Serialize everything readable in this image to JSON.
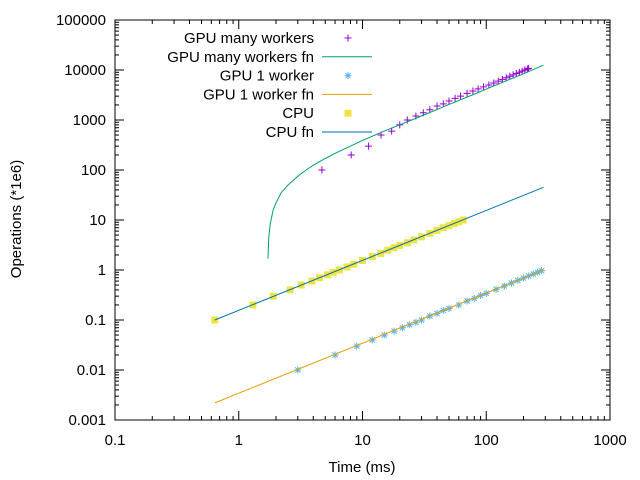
{
  "chart_data": {
    "type": "scatter",
    "title": "",
    "xlabel": "Time (ms)",
    "ylabel": "Operations (*1e6)",
    "xscale": "log",
    "yscale": "log",
    "xlim": [
      0.1,
      1000
    ],
    "ylim": [
      0.001,
      100000
    ],
    "x_ticks": [
      "0.1",
      "1",
      "10",
      "100",
      "1000"
    ],
    "y_ticks": [
      "0.001",
      "0.01",
      "0.1",
      "1",
      "10",
      "100",
      "1000",
      "10000",
      "100000"
    ],
    "grid": false,
    "legend_position": "top-left",
    "series": [
      {
        "name": "GPU many workers",
        "kind": "points",
        "marker": "plus",
        "color": "#9400d3",
        "x": [
          4.7,
          8.1,
          11.2,
          14.1,
          17.2,
          20,
          23,
          27,
          31,
          35,
          40,
          45,
          50,
          56,
          62,
          70,
          78,
          86,
          95,
          105,
          115,
          125,
          135,
          145,
          155,
          165,
          175,
          185,
          195,
          205,
          215,
          220
        ],
        "y": [
          100,
          200,
          300,
          500,
          600,
          800,
          1000,
          1200,
          1400,
          1600,
          1900,
          2100,
          2400,
          2700,
          3000,
          3400,
          3800,
          4200,
          4600,
          5000,
          5500,
          6000,
          6500,
          7000,
          7500,
          8000,
          8500,
          9000,
          9500,
          10000,
          10500,
          10800
        ]
      },
      {
        "name": "GPU many workers fn",
        "kind": "line",
        "color": "#009e73",
        "x": [
          1.72,
          1.75,
          1.8,
          1.9,
          2.0,
          2.2,
          2.5,
          3,
          3.5,
          4,
          5,
          6,
          8,
          10,
          15,
          20,
          30,
          50,
          80,
          100,
          150,
          200,
          290
        ],
        "y": [
          1.7,
          4.5,
          8.5,
          16,
          22,
          35,
          50,
          75,
          100,
          125,
          170,
          215,
          300,
          390,
          600,
          800,
          1200,
          2050,
          3300,
          4150,
          6300,
          8400,
          12500
        ]
      },
      {
        "name": "GPU 1 worker",
        "kind": "points",
        "marker": "star",
        "color": "#56b4e9",
        "x": [
          3,
          6,
          9,
          12,
          15,
          18,
          21,
          24,
          27,
          30,
          35,
          40,
          45,
          50,
          60,
          70,
          80,
          90,
          100,
          120,
          140,
          160,
          180,
          200,
          220,
          240,
          260,
          280
        ],
        "y": [
          0.01,
          0.02,
          0.03,
          0.04,
          0.05,
          0.06,
          0.07,
          0.08,
          0.09,
          0.1,
          0.12,
          0.135,
          0.155,
          0.17,
          0.2,
          0.24,
          0.27,
          0.31,
          0.34,
          0.41,
          0.48,
          0.55,
          0.62,
          0.69,
          0.76,
          0.83,
          0.9,
          0.97
        ]
      },
      {
        "name": "GPU 1 worker fn",
        "kind": "line",
        "color": "#e69f00",
        "x": [
          0.64,
          290
        ],
        "y": [
          0.0022,
          1.0
        ]
      },
      {
        "name": "CPU",
        "kind": "points",
        "marker": "square",
        "color": "#f0e442",
        "x": [
          0.64,
          1.3,
          1.9,
          2.6,
          3.2,
          3.9,
          4.5,
          5.2,
          5.8,
          6.5,
          7.5,
          8.5,
          10,
          12,
          14,
          16,
          18,
          20,
          23,
          26,
          30,
          35,
          40,
          45,
          50,
          55,
          60,
          65
        ],
        "y": [
          0.1,
          0.2,
          0.3,
          0.4,
          0.5,
          0.6,
          0.7,
          0.8,
          0.9,
          1.0,
          1.15,
          1.3,
          1.55,
          1.85,
          2.15,
          2.5,
          2.8,
          3.1,
          3.5,
          4.0,
          4.6,
          5.4,
          6.2,
          7.0,
          7.7,
          8.5,
          9.2,
          10
        ]
      },
      {
        "name": "CPU fn",
        "kind": "line",
        "color": "#0072b2",
        "x": [
          0.64,
          290
        ],
        "y": [
          0.1,
          45
        ]
      }
    ]
  }
}
